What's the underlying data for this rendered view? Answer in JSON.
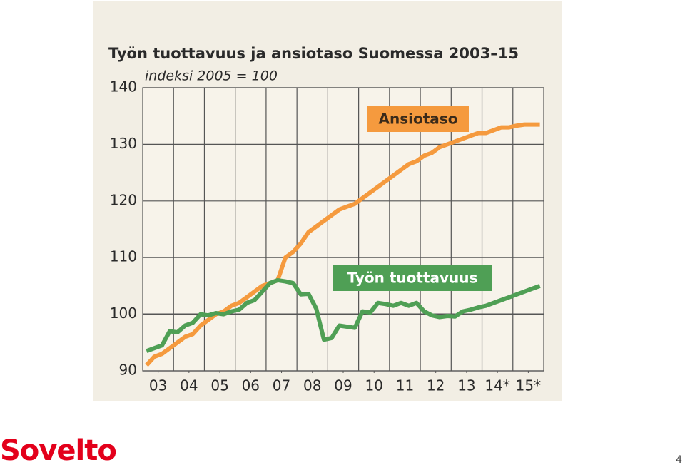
{
  "chart_data": {
    "type": "line",
    "title": "Työn tuottavuus ja ansiotaso Suomessa 2003–15",
    "subtitle": "indeksi 2005 = 100",
    "x": [
      2003.125,
      2003.375,
      2003.625,
      2003.875,
      2004.125,
      2004.375,
      2004.625,
      2004.875,
      2005.125,
      2005.375,
      2005.625,
      2005.875,
      2006.125,
      2006.375,
      2006.625,
      2006.875,
      2007.125,
      2007.375,
      2007.625,
      2007.875,
      2008.125,
      2008.375,
      2008.625,
      2008.875,
      2009.125,
      2009.375,
      2009.625,
      2009.875,
      2010.125,
      2010.375,
      2010.625,
      2010.875,
      2011.125,
      2011.375,
      2011.625,
      2011.875,
      2012.125,
      2012.375,
      2012.625,
      2012.875,
      2013.125,
      2013.375,
      2013.625,
      2013.875,
      2014.125,
      2014.375,
      2014.625,
      2014.875,
      2015.125,
      2015.375,
      2015.625,
      2015.875
    ],
    "series": [
      {
        "name": "Ansiotaso",
        "color": "#f59a3e",
        "values": [
          91,
          92.5,
          93,
          94,
          95,
          96,
          96.5,
          98,
          99,
          100,
          100.5,
          101.5,
          102,
          103,
          104,
          105,
          105.5,
          106,
          110,
          111,
          112.5,
          114.5,
          115.5,
          116.5,
          117.5,
          118.5,
          119,
          119.5,
          120.5,
          121.5,
          122.5,
          123.5,
          124.5,
          125.5,
          126.5,
          127,
          128,
          128.5,
          129.5,
          130,
          130.5,
          131,
          131.5,
          132,
          132,
          132.5,
          133,
          133,
          133.3,
          133.5,
          133.5,
          133.5
        ]
      },
      {
        "name": "Työn tuottavuus",
        "color": "#4f9f55",
        "values": [
          93.5,
          94,
          94.5,
          97,
          96.8,
          98,
          98.5,
          100,
          99.8,
          100.2,
          100,
          100.5,
          100.8,
          102,
          102.5,
          104,
          105.5,
          106,
          105.8,
          105.5,
          103.5,
          103.6,
          101,
          95.5,
          95.8,
          98,
          97.8,
          97.6,
          100.5,
          100.3,
          102,
          101.8,
          101.5,
          102,
          101.5,
          102,
          100.5,
          99.8,
          99.5,
          99.7,
          99.6,
          100.5,
          100.8,
          101.2,
          101.5,
          102,
          102.5,
          103,
          103.5,
          104,
          104.5,
          105
        ]
      }
    ],
    "xlim": [
      2003,
      2016
    ],
    "xticks": [
      {
        "value": 2003.5,
        "label": "03"
      },
      {
        "value": 2004.5,
        "label": "04"
      },
      {
        "value": 2005.5,
        "label": "05"
      },
      {
        "value": 2006.5,
        "label": "06"
      },
      {
        "value": 2007.5,
        "label": "07"
      },
      {
        "value": 2008.5,
        "label": "08"
      },
      {
        "value": 2009.5,
        "label": "09"
      },
      {
        "value": 2010.5,
        "label": "10"
      },
      {
        "value": 2011.5,
        "label": "11"
      },
      {
        "value": 2012.5,
        "label": "12"
      },
      {
        "value": 2013.5,
        "label": "13"
      },
      {
        "value": 2014.5,
        "label": "14*"
      },
      {
        "value": 2015.5,
        "label": "15*"
      }
    ],
    "ylim": [
      90,
      140
    ],
    "yticks": [
      90,
      100,
      110,
      120,
      130,
      140
    ],
    "grid": true
  },
  "footer": {
    "logo": "Sovelto",
    "page": "4"
  }
}
